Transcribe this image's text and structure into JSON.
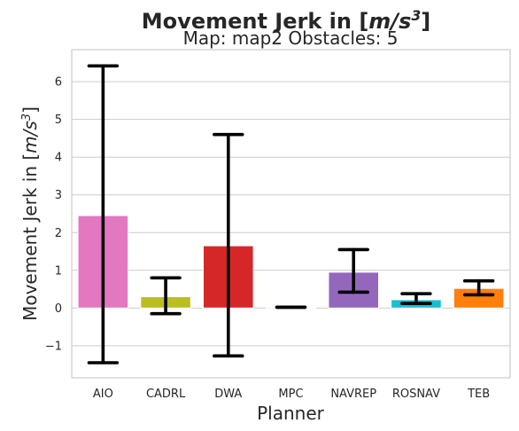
{
  "chart_data": {
    "type": "bar",
    "suptitle": "Movement Jerk in [m/s³]",
    "title": "Map: map2 Obstacles: 5",
    "xlabel": "Planner",
    "ylabel": "Movement Jerk in [m/s³]",
    "categories": [
      "AIO",
      "CADRL",
      "DWA",
      "MPC",
      "NAVREP",
      "ROSNAV",
      "TEB"
    ],
    "values": [
      2.45,
      0.3,
      1.65,
      0.02,
      0.95,
      0.22,
      0.52
    ],
    "error_low": [
      -1.45,
      -0.15,
      -1.27,
      0.02,
      0.42,
      0.12,
      0.35
    ],
    "error_high": [
      6.42,
      0.8,
      4.6,
      0.02,
      1.55,
      0.38,
      0.72
    ],
    "colors": [
      "#e377c2",
      "#bcbd22",
      "#d62728",
      "#7f7f7f",
      "#9467bd",
      "#17becf",
      "#ff7f0e"
    ],
    "ylim": [
      -1.85,
      6.85
    ],
    "yticks": [
      -1,
      0,
      1,
      2,
      3,
      4,
      5,
      6
    ],
    "grid": "y"
  }
}
